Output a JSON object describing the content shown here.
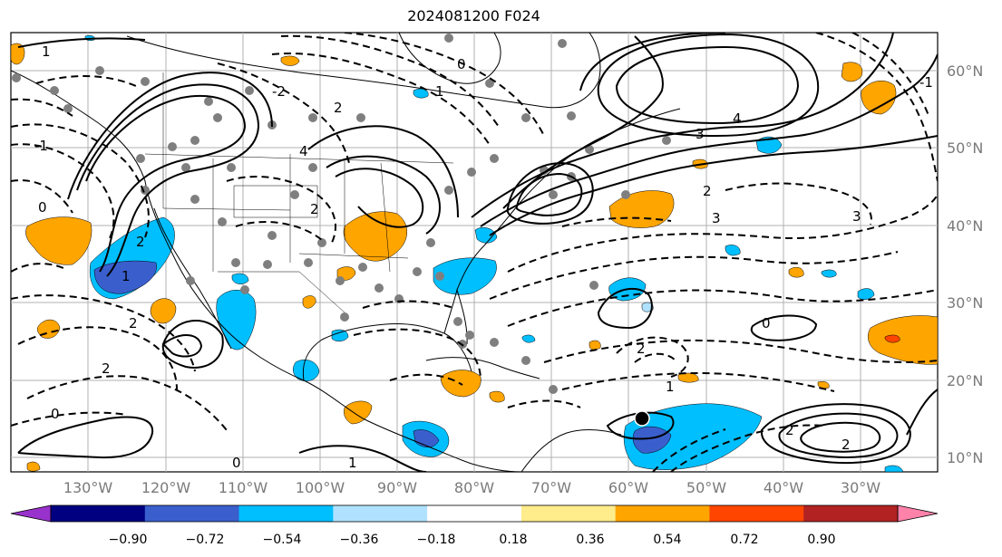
{
  "title": "2024081200 F024",
  "lat_labels": [
    "60°N",
    "50°N",
    "40°N",
    "30°N",
    "20°N",
    "10°N"
  ],
  "lon_labels": [
    "130°W",
    "120°W",
    "110°W",
    "100°W",
    "90°W",
    "80°W",
    "70°W",
    "60°W",
    "50°W",
    "40°W",
    "30°W"
  ],
  "colorbar": {
    "colors": [
      "#9932cc",
      "#000080",
      "#3a5fcd",
      "#00bfff",
      "#b0e2ff",
      "#ffffff",
      "#ffec8b",
      "#ffa500",
      "#ff4500",
      "#b22222",
      "#ff82ab"
    ],
    "tick_labels": [
      "−0.90",
      "−0.72",
      "−0.54",
      "−0.36",
      "−0.18",
      "0.18",
      "0.36",
      "0.54",
      "0.72",
      "0.90"
    ]
  },
  "contour_labels": [
    "1",
    "2",
    "3",
    "4",
    "3",
    "2",
    "3",
    "1",
    "2",
    "0",
    "2",
    "1",
    "2",
    "2",
    "2",
    "0",
    "1",
    "0",
    "-1",
    "-2",
    "-1",
    "0",
    "2",
    "4",
    "2",
    "0",
    "1"
  ],
  "marker": {
    "lat": 15,
    "lon": -60
  }
}
